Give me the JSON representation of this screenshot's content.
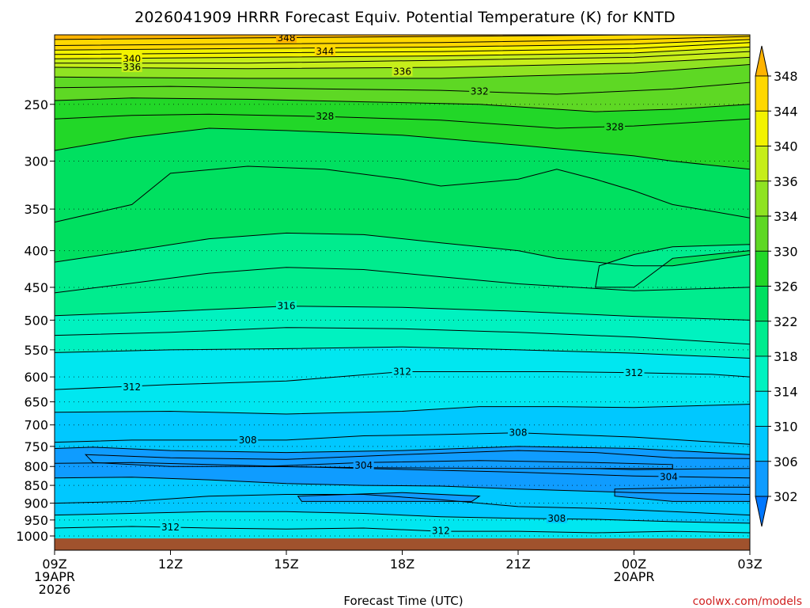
{
  "title": "2026041909 HRRR Forecast Equiv. Potential Temperature (K) for KNTD",
  "xlabel": "Forecast Time (UTC)",
  "credit": "coolwx.com/models",
  "colors": {
    "ground": "#a0522d",
    "contour_line": "#000000",
    "palette": [
      "#0077ff",
      "#0f9cff",
      "#00c8ff",
      "#00e7f0",
      "#00f2c0",
      "#00ec8e",
      "#00e060",
      "#22d728",
      "#5ed824",
      "#8fe322",
      "#c6ee1a",
      "#f2f200",
      "#ffd800",
      "#ffb300"
    ]
  },
  "chart_data": {
    "type": "heatmap",
    "variable": "Equivalent Potential Temperature (K)",
    "station": "KNTD",
    "model": "HRRR",
    "init": "2026041909",
    "y_axis": {
      "scale": "log-pressure",
      "reversed": true,
      "range": [
        1000,
        200
      ],
      "ticks": [
        250,
        300,
        350,
        400,
        450,
        500,
        550,
        600,
        650,
        700,
        750,
        800,
        850,
        900,
        950,
        1000
      ]
    },
    "x_axis": {
      "range_hours": [
        0,
        18
      ],
      "ticks": [
        {
          "hour": 0,
          "label": "09Z",
          "sub": [
            "19APR",
            "2026"
          ]
        },
        {
          "hour": 3,
          "label": "12Z",
          "sub": []
        },
        {
          "hour": 6,
          "label": "15Z",
          "sub": []
        },
        {
          "hour": 9,
          "label": "18Z",
          "sub": []
        },
        {
          "hour": 12,
          "label": "21Z",
          "sub": []
        },
        {
          "hour": 15,
          "label": "00Z",
          "sub": [
            "20APR"
          ]
        },
        {
          "hour": 18,
          "label": "03Z",
          "sub": []
        }
      ]
    },
    "colorbar": {
      "levels": [
        302,
        306,
        310,
        314,
        318,
        322,
        326,
        330,
        334,
        336,
        340,
        344,
        348
      ],
      "extend": "both"
    },
    "grid": "dotted horizontal at pressure ticks",
    "contours": [
      {
        "value": 348,
        "pts": [
          [
            0,
            203
          ],
          [
            5,
            202
          ],
          [
            10,
            201
          ],
          [
            15,
            200
          ],
          [
            18,
            200
          ]
        ]
      },
      {
        "value": 346,
        "pts": [
          [
            0,
            207
          ],
          [
            5,
            206
          ],
          [
            10,
            205
          ],
          [
            15,
            203
          ],
          [
            18,
            201
          ]
        ]
      },
      {
        "value": 344,
        "pts": [
          [
            0,
            210
          ],
          [
            5,
            209
          ],
          [
            10,
            208
          ],
          [
            15,
            206
          ],
          [
            18,
            203
          ]
        ]
      },
      {
        "value": 342,
        "pts": [
          [
            0,
            213
          ],
          [
            5,
            212
          ],
          [
            10,
            211
          ],
          [
            15,
            209
          ],
          [
            18,
            205
          ]
        ]
      },
      {
        "value": 340,
        "pts": [
          [
            0,
            216
          ],
          [
            5,
            215
          ],
          [
            10,
            214
          ],
          [
            15,
            212
          ],
          [
            18,
            208
          ]
        ]
      },
      {
        "value": 338,
        "pts": [
          [
            0,
            219
          ],
          [
            5,
            219
          ],
          [
            10,
            217
          ],
          [
            15,
            215
          ],
          [
            18,
            211
          ]
        ]
      },
      {
        "value": 336,
        "pts": [
          [
            0,
            222
          ],
          [
            5,
            223
          ],
          [
            10,
            222
          ],
          [
            15,
            219
          ],
          [
            18,
            215
          ]
        ]
      },
      {
        "value": 334,
        "pts": [
          [
            0,
            229
          ],
          [
            5,
            230
          ],
          [
            10,
            230
          ],
          [
            15,
            226
          ],
          [
            18,
            220
          ]
        ]
      },
      {
        "value": 332,
        "pts": [
          [
            0,
            237
          ],
          [
            3,
            236
          ],
          [
            7,
            238
          ],
          [
            10,
            239
          ],
          [
            13,
            242
          ],
          [
            16,
            238
          ],
          [
            18,
            233
          ]
        ]
      },
      {
        "value": 330,
        "pts": [
          [
            0,
            247
          ],
          [
            2,
            245
          ],
          [
            5,
            246
          ],
          [
            8,
            248
          ],
          [
            11,
            250
          ],
          [
            14,
            256
          ],
          [
            16,
            254
          ],
          [
            18,
            250
          ]
        ]
      },
      {
        "value": 328,
        "pts": [
          [
            0,
            262
          ],
          [
            2,
            259
          ],
          [
            4,
            258
          ],
          [
            7,
            260
          ],
          [
            10,
            263
          ],
          [
            13,
            270
          ],
          [
            15,
            268
          ],
          [
            18,
            262
          ]
        ]
      },
      {
        "value": 326,
        "pts": [
          [
            0,
            290
          ],
          [
            2,
            278
          ],
          [
            4,
            270
          ],
          [
            6,
            272
          ],
          [
            9,
            276
          ],
          [
            12,
            285
          ],
          [
            15,
            295
          ],
          [
            16,
            300
          ],
          [
            18,
            308
          ]
        ]
      },
      {
        "value": 324,
        "pts": [
          [
            0,
            365
          ],
          [
            2,
            345
          ],
          [
            3,
            312
          ],
          [
            5,
            305
          ],
          [
            7,
            308
          ],
          [
            9,
            318
          ],
          [
            10,
            325
          ],
          [
            12,
            318
          ],
          [
            13,
            308
          ],
          [
            14,
            318
          ],
          [
            15,
            330
          ],
          [
            16,
            345
          ],
          [
            18,
            360
          ]
        ]
      },
      {
        "value": 322,
        "pts": [
          [
            0,
            415
          ],
          [
            2,
            400
          ],
          [
            4,
            385
          ],
          [
            6,
            378
          ],
          [
            8,
            380
          ],
          [
            10,
            390
          ],
          [
            12,
            400
          ],
          [
            13,
            410
          ],
          [
            15,
            420
          ],
          [
            16,
            420
          ],
          [
            18,
            405
          ]
        ]
      },
      {
        "value": 320,
        "pts": [
          [
            0,
            458
          ],
          [
            2,
            444
          ],
          [
            4,
            430
          ],
          [
            6,
            422
          ],
          [
            8,
            425
          ],
          [
            10,
            435
          ],
          [
            12,
            445
          ],
          [
            15,
            455
          ],
          [
            18,
            450
          ]
        ]
      },
      {
        "value": 318,
        "pts": [
          [
            0,
            493
          ],
          [
            3,
            486
          ],
          [
            6,
            478
          ],
          [
            9,
            480
          ],
          [
            12,
            486
          ],
          [
            15,
            494
          ],
          [
            18,
            500
          ]
        ]
      },
      {
        "value": 316,
        "pts": [
          [
            0,
            525
          ],
          [
            3,
            520
          ],
          [
            6,
            512
          ],
          [
            9,
            514
          ],
          [
            12,
            520
          ],
          [
            15,
            528
          ],
          [
            18,
            540
          ]
        ]
      },
      {
        "value": 314,
        "pts": [
          [
            0,
            555
          ],
          [
            3,
            550
          ],
          [
            6,
            548
          ],
          [
            9,
            545
          ],
          [
            12,
            550
          ],
          [
            15,
            556
          ],
          [
            18,
            565
          ]
        ]
      },
      {
        "value": 312,
        "pts": [
          [
            0,
            625
          ],
          [
            3,
            615
          ],
          [
            6,
            608
          ],
          [
            9,
            590
          ],
          [
            11,
            590
          ],
          [
            13,
            590
          ],
          [
            15,
            592
          ],
          [
            17,
            595
          ],
          [
            18,
            600
          ]
        ]
      },
      {
        "value": 310,
        "pts": [
          [
            0,
            672
          ],
          [
            3,
            670
          ],
          [
            6,
            676
          ],
          [
            9,
            670
          ],
          [
            11,
            660
          ],
          [
            13,
            660
          ],
          [
            15,
            662
          ],
          [
            18,
            655
          ]
        ]
      },
      {
        "value": 308,
        "pts": [
          [
            0,
            740
          ],
          [
            2,
            735
          ],
          [
            4,
            735
          ],
          [
            6,
            735
          ],
          [
            8,
            725
          ],
          [
            10,
            722
          ],
          [
            12,
            718
          ],
          [
            15,
            728
          ],
          [
            18,
            745
          ]
        ]
      },
      {
        "value": 306,
        "pts": [
          [
            0,
            755
          ],
          [
            1,
            752
          ],
          [
            3,
            760
          ],
          [
            6,
            765
          ],
          [
            9,
            760
          ],
          [
            12,
            750
          ],
          [
            15,
            755
          ],
          [
            18,
            770
          ]
        ]
      },
      {
        "value": 304,
        "pts": [
          [
            0,
            792
          ],
          [
            2,
            790
          ],
          [
            4,
            795
          ],
          [
            6,
            800
          ],
          [
            8,
            805
          ],
          [
            10,
            810
          ],
          [
            12,
            815
          ],
          [
            15,
            825
          ],
          [
            18,
            830
          ]
        ]
      },
      {
        "value": 306,
        "pts": [
          [
            0,
            830
          ],
          [
            2,
            828
          ],
          [
            4,
            835
          ],
          [
            6,
            845
          ],
          [
            8,
            850
          ],
          [
            10,
            852
          ],
          [
            12,
            860
          ],
          [
            15,
            870
          ],
          [
            18,
            875
          ]
        ]
      },
      {
        "value": 308,
        "pts": [
          [
            0,
            900
          ],
          [
            2,
            895
          ],
          [
            4,
            880
          ],
          [
            6,
            875
          ],
          [
            8,
            875
          ],
          [
            10,
            890
          ],
          [
            12,
            910
          ],
          [
            14,
            915
          ],
          [
            16,
            925
          ],
          [
            18,
            935
          ]
        ]
      },
      {
        "value": 310,
        "pts": [
          [
            0,
            935
          ],
          [
            2,
            930
          ],
          [
            4,
            925
          ],
          [
            6,
            925
          ],
          [
            8,
            930
          ],
          [
            10,
            940
          ],
          [
            12,
            945
          ],
          [
            14,
            948
          ],
          [
            16,
            955
          ],
          [
            18,
            960
          ]
        ]
      },
      {
        "value": 312,
        "pts": [
          [
            0,
            975
          ],
          [
            2,
            970
          ],
          [
            4,
            975
          ],
          [
            6,
            978
          ],
          [
            8,
            975
          ],
          [
            10,
            985
          ],
          [
            12,
            985
          ],
          [
            14,
            990
          ],
          [
            16,
            985
          ],
          [
            18,
            990
          ]
        ]
      }
    ],
    "closed_regions": [
      {
        "value": 304,
        "pts": [
          [
            0.8,
            770
          ],
          [
            3,
            778
          ],
          [
            6,
            782
          ],
          [
            9,
            770
          ],
          [
            12,
            760
          ],
          [
            14,
            765
          ],
          [
            16,
            778
          ],
          [
            18,
            780
          ],
          [
            18,
            805
          ],
          [
            15,
            808
          ],
          [
            12,
            800
          ],
          [
            9,
            795
          ],
          [
            6,
            800
          ],
          [
            3,
            800
          ],
          [
            1,
            790
          ]
        ]
      },
      {
        "value": 304,
        "pts": [
          [
            5.4,
            800
          ],
          [
            8,
            790
          ],
          [
            11,
            785
          ],
          [
            14,
            790
          ],
          [
            16,
            795
          ],
          [
            16,
            805
          ],
          [
            12,
            805
          ],
          [
            8,
            803
          ]
        ]
      },
      {
        "value": 304,
        "pts": [
          [
            14.5,
            860
          ],
          [
            17,
            855
          ],
          [
            18,
            855
          ],
          [
            18,
            895
          ],
          [
            16,
            895
          ],
          [
            14.5,
            880
          ]
        ]
      },
      {
        "value": 304,
        "pts": [
          [
            6.3,
            880
          ],
          [
            9,
            870
          ],
          [
            11,
            880
          ],
          [
            10.8,
            895
          ],
          [
            9,
            895
          ],
          [
            6.4,
            895
          ]
        ]
      },
      {
        "value": 322,
        "pts": [
          [
            14.1,
            420
          ],
          [
            15,
            405
          ],
          [
            16,
            395
          ],
          [
            18,
            392
          ],
          [
            18,
            400
          ],
          [
            16,
            410
          ],
          [
            15,
            450
          ],
          [
            14,
            450
          ]
        ]
      }
    ],
    "contour_labels": [
      {
        "value": 348,
        "hour": 6.0,
        "p": 202
      },
      {
        "value": 344,
        "hour": 7.0,
        "p": 211
      },
      {
        "value": 340,
        "hour": 2.0,
        "p": 216
      },
      {
        "value": 336,
        "hour": 2.0,
        "p": 222
      },
      {
        "value": 336,
        "hour": 9.0,
        "p": 225
      },
      {
        "value": 332,
        "hour": 11.0,
        "p": 240
      },
      {
        "value": 328,
        "hour": 7.0,
        "p": 260
      },
      {
        "value": 328,
        "hour": 14.5,
        "p": 269
      },
      {
        "value": 316,
        "hour": 6.0,
        "p": 478
      },
      {
        "value": 312,
        "hour": 2.0,
        "p": 620
      },
      {
        "value": 312,
        "hour": 9.0,
        "p": 590
      },
      {
        "value": 312,
        "hour": 15.0,
        "p": 592
      },
      {
        "value": 308,
        "hour": 5.0,
        "p": 735
      },
      {
        "value": 308,
        "hour": 12.0,
        "p": 718
      },
      {
        "value": 304,
        "hour": 8.0,
        "p": 797
      },
      {
        "value": 304,
        "hour": 15.9,
        "p": 827
      },
      {
        "value": 308,
        "hour": 13.0,
        "p": 945
      },
      {
        "value": 312,
        "hour": 3.0,
        "p": 973
      },
      {
        "value": 312,
        "hour": 10.0,
        "p": 983
      }
    ],
    "surface_pressure": 1008
  }
}
